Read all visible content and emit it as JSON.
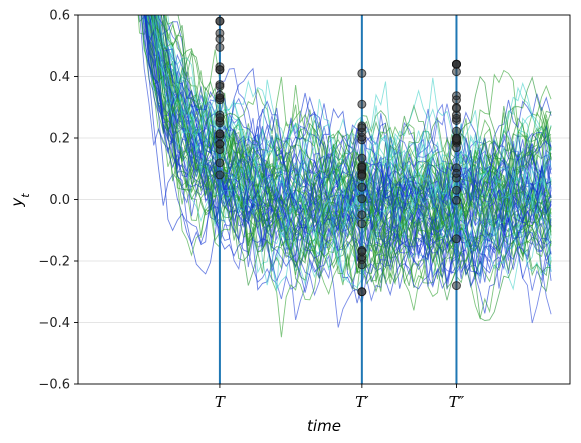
{
  "chart_data": {
    "type": "line",
    "title": "",
    "xlabel": "time",
    "ylabel": "y_t",
    "ylim": [
      -0.6,
      0.6
    ],
    "yticks": [
      -0.6,
      -0.4,
      -0.2,
      0.0,
      0.2,
      0.4,
      0.6
    ],
    "ytick_labels": [
      "−0.6",
      "−0.4",
      "−0.2",
      "0.0",
      "0.2",
      "0.4",
      "0.6"
    ],
    "grid": "horizontal",
    "x_markers": [
      {
        "label": "T",
        "x": 20
      },
      {
        "label": "T′",
        "x": 50
      },
      {
        "label": "T″",
        "x": 70
      }
    ],
    "series_description": "Many simulated sample paths of y_t decaying from above 0.6 toward a stationary band around 0, with cross-sectional snapshots marked as dots at T, T′ and T″",
    "process": {
      "mean": 0.0,
      "start": 1.0,
      "decay_rate": 0.12,
      "noise_sd": 0.11
    },
    "series_count": 90,
    "series_colors": [
      "#1f3fd8",
      "#2ca02c",
      "#3fd0c8",
      "#0a2fd0",
      "#1a8f2a"
    ],
    "marker_line_color": "#1f77b4",
    "dot_color": "#333333",
    "x_start": 0,
    "x_end": 90,
    "snapshots": {
      "T": {
        "min": 0.08,
        "max": 0.58
      },
      "T′": {
        "min": -0.3,
        "max": 0.41
      },
      "T″": {
        "min": -0.28,
        "max": 0.44
      }
    }
  }
}
